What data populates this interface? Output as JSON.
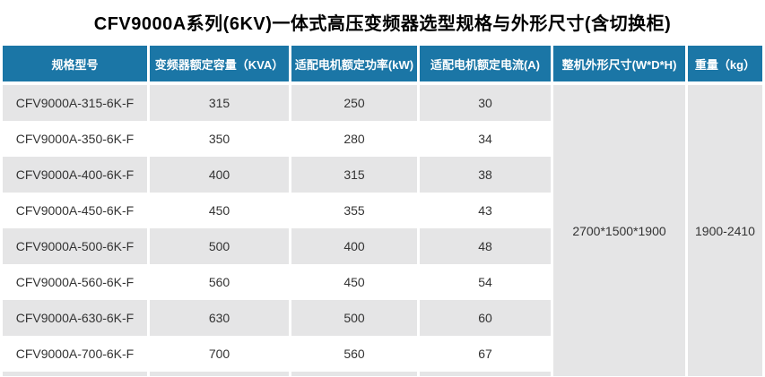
{
  "title": "CFV9000A系列(6KV)一体式高压变频器选型规格与外形尺寸(含切换柜)",
  "table": {
    "columns": [
      "规格型号",
      "变频器额定容量（KVA）",
      "适配电机额定功率(kW)",
      "适配电机额定电流(A)",
      "整机外形尺寸(W*D*H)",
      "重量（kg）"
    ],
    "rows": [
      {
        "model": "CFV9000A-315-6K-F",
        "capacity": "315",
        "power": "250",
        "current": "30"
      },
      {
        "model": "CFV9000A-350-6K-F",
        "capacity": "350",
        "power": "280",
        "current": "34"
      },
      {
        "model": "CFV9000A-400-6K-F",
        "capacity": "400",
        "power": "315",
        "current": "38"
      },
      {
        "model": "CFV9000A-450-6K-F",
        "capacity": "450",
        "power": "355",
        "current": "43"
      },
      {
        "model": "CFV9000A-500-6K-F",
        "capacity": "500",
        "power": "400",
        "current": "48"
      },
      {
        "model": "CFV9000A-560-6K-F",
        "capacity": "560",
        "power": "450",
        "current": "54"
      },
      {
        "model": "CFV9000A-630-6K-F",
        "capacity": "630",
        "power": "500",
        "current": "60"
      },
      {
        "model": "CFV9000A-700-6K-F",
        "capacity": "700",
        "power": "560",
        "current": "67"
      }
    ],
    "merged": {
      "dimensions": "2700*1500*1900",
      "weight": "1900-2410"
    },
    "colors": {
      "header_bg": "#1B76A6",
      "header_text": "#FFFFFF",
      "stripe_bg": "#E5E5E6",
      "row_bg": "#FFFFFF",
      "cell_text": "#333333",
      "title_text": "#000000"
    }
  }
}
